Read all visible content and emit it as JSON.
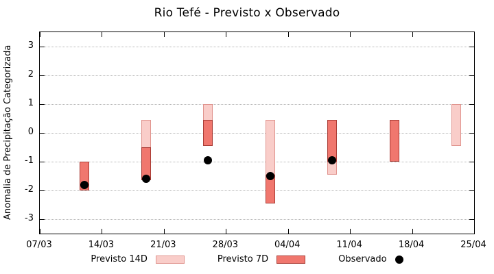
{
  "chart_data": {
    "type": "bar",
    "title": "Rio Tefé - Previsto x Observado",
    "ylabel": "Anomalia de Precipitação Categorizada",
    "xlabel": "",
    "ylim": [
      -3.5,
      3.5
    ],
    "yticks": [
      -3,
      -2,
      -1,
      0,
      1,
      2,
      3
    ],
    "xtick_labels": [
      "07/03",
      "14/03",
      "21/03",
      "28/03",
      "04/04",
      "11/04",
      "18/04",
      "25/04"
    ],
    "xtick_days": [
      0,
      7,
      14,
      21,
      28,
      35,
      42,
      49
    ],
    "x_domain_days": [
      0,
      49
    ],
    "grid": "horizontal-dotted",
    "legend_position": "bottom-center",
    "bars": [
      {
        "date": "12/03",
        "day": 5,
        "previsto_14d": null,
        "previsto_7d": [
          -2.0,
          -1.0
        ],
        "observado": -1.8
      },
      {
        "date": "19/03",
        "day": 12,
        "previsto_14d": [
          -1.65,
          0.45
        ],
        "previsto_7d": [
          -1.65,
          -0.5
        ],
        "observado": -1.6
      },
      {
        "date": "26/03",
        "day": 19,
        "previsto_14d": [
          -0.45,
          1.0
        ],
        "previsto_7d": [
          -0.45,
          0.45
        ],
        "observado": -0.95
      },
      {
        "date": "02/04",
        "day": 26,
        "previsto_14d": [
          -1.45,
          0.45
        ],
        "previsto_7d": [
          -2.45,
          -1.45
        ],
        "observado": -1.5
      },
      {
        "date": "09/04",
        "day": 33,
        "previsto_14d": [
          -1.45,
          0.45
        ],
        "previsto_7d": [
          -1.0,
          0.45
        ],
        "observado": -0.95
      },
      {
        "date": "16/04",
        "day": 40,
        "previsto_14d": null,
        "previsto_7d": [
          -1.0,
          0.45
        ],
        "observado": null
      },
      {
        "date": "23/04",
        "day": 47,
        "previsto_14d": [
          -0.45,
          1.0
        ],
        "previsto_7d": null,
        "observado": null
      }
    ],
    "legend": [
      {
        "label": "Previsto 14D",
        "type": "box",
        "fill": "#f9cdc9",
        "border": "#e0938d"
      },
      {
        "label": "Previsto 7D",
        "type": "box",
        "fill": "#f0776e",
        "border": "#a93b34"
      },
      {
        "label": "Observado",
        "type": "dot",
        "color": "#000000"
      }
    ],
    "colors": {
      "previsto_14d_fill": "#f9cdc9",
      "previsto_14d_border": "#e0938d",
      "previsto_7d_fill": "#f0776e",
      "previsto_7d_border": "#a93b34",
      "observado": "#000000"
    }
  }
}
